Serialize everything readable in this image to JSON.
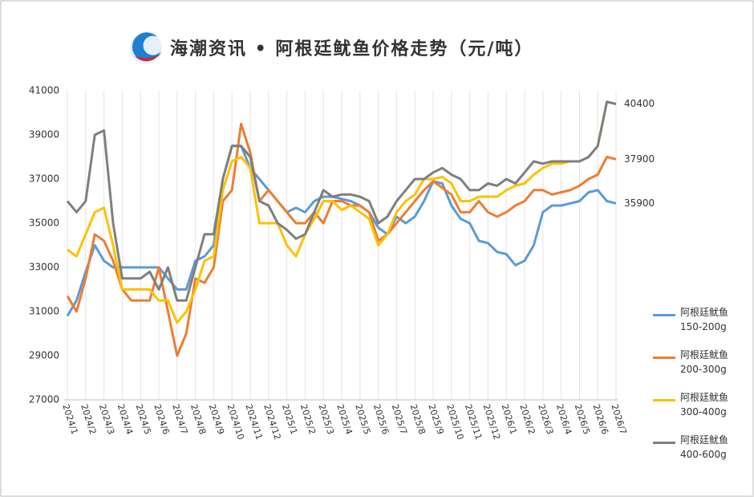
{
  "chart_data": {
    "type": "line",
    "title": "海潮资讯 • 阿根廷鱿鱼价格走势（元/吨）",
    "categories": [
      "2024/1",
      null,
      "2024/2",
      null,
      "2024/3",
      null,
      "2024/4",
      null,
      "2024/5",
      null,
      "2024/6",
      null,
      "2024/7",
      null,
      "2024/8",
      null,
      "2024/9",
      null,
      "2024/10",
      null,
      "2024/11",
      null,
      "2024/12",
      null,
      "2025/1",
      null,
      "2025/2",
      null,
      "2025/3",
      null,
      "2025/4",
      null,
      "2025/5",
      null,
      "2025/6",
      null,
      "2025/7",
      null,
      "2025/8",
      null,
      "2025/9",
      null,
      "2025/10",
      null,
      "2025/11",
      null,
      "2025/12",
      null,
      "2026/1",
      null,
      "2026/2",
      null,
      "2026/3",
      null,
      "2026/4",
      null,
      "2026/5",
      null,
      "2026/6",
      null,
      "2026/7"
    ],
    "series": [
      {
        "name": "阿根廷鱿鱼 150-200g",
        "color": "#5b9bd5",
        "values": [
          30800,
          31500,
          32800,
          34000,
          33300,
          33000,
          33000,
          33000,
          33000,
          33000,
          33000,
          32500,
          32000,
          32000,
          33300,
          33500,
          34000,
          37000,
          38500,
          38500,
          37500,
          37000,
          36500,
          36000,
          35500,
          35700,
          35500,
          36000,
          36200,
          36200,
          36100,
          36000,
          35800,
          35500,
          34800,
          34500,
          35300,
          35000,
          35300,
          36000,
          36900,
          36800,
          35800,
          35200,
          35000,
          34200,
          34100,
          33700,
          33600,
          33100,
          33300,
          34000,
          35500,
          35800,
          35800,
          35900,
          36000,
          36400,
          36500,
          36000,
          35900
        ]
      },
      {
        "name": "阿根廷鱿鱼 200-300g",
        "color": "#ed7d31",
        "values": [
          31700,
          31000,
          32500,
          34500,
          34200,
          33300,
          32000,
          31500,
          31500,
          31500,
          33000,
          31000,
          29000,
          30000,
          32500,
          32300,
          33000,
          36000,
          36500,
          39500,
          38200,
          36000,
          36500,
          36000,
          35500,
          35000,
          35000,
          35500,
          35000,
          36000,
          36000,
          35800,
          35800,
          35500,
          34200,
          34500,
          35000,
          35500,
          36000,
          36500,
          36900,
          36600,
          36300,
          35500,
          35500,
          36000,
          35500,
          35300,
          35500,
          35800,
          36000,
          36500,
          36500,
          36300,
          36400,
          36500,
          36700,
          37000,
          37200,
          38000,
          37900
        ]
      },
      {
        "name": "阿根廷鱿鱼 300-400g",
        "color": "#ffc000",
        "values": [
          33800,
          33500,
          34500,
          35500,
          35700,
          34000,
          32000,
          32000,
          32000,
          32000,
          31500,
          31500,
          30500,
          31000,
          32000,
          33300,
          33500,
          36500,
          37800,
          38000,
          37500,
          35000,
          35000,
          35000,
          34000,
          33500,
          34500,
          35200,
          36000,
          36000,
          35600,
          35800,
          35500,
          35200,
          34000,
          34500,
          35500,
          36000,
          36300,
          37000,
          37000,
          37100,
          36800,
          36000,
          36000,
          36200,
          36200,
          36200,
          36500,
          36700,
          36800,
          37200,
          37500,
          37700,
          37700,
          37800,
          37800,
          38000,
          38500,
          40500,
          40400
        ]
      },
      {
        "name": "阿根廷鱿鱼 400-600g",
        "color": "#7f7f7f",
        "values": [
          36000,
          35500,
          36000,
          39000,
          39200,
          35000,
          32500,
          32500,
          32500,
          32800,
          32000,
          33000,
          31500,
          31500,
          33000,
          34500,
          34500,
          37000,
          38500,
          38500,
          38000,
          36000,
          35800,
          35000,
          34700,
          34300,
          34500,
          35500,
          36500,
          36200,
          36300,
          36300,
          36200,
          36000,
          35000,
          35300,
          36000,
          36500,
          37000,
          37000,
          37300,
          37500,
          37200,
          37000,
          36500,
          36500,
          36800,
          36700,
          37000,
          36800,
          37300,
          37800,
          37700,
          37800,
          37800,
          37800,
          37800,
          38000,
          38500,
          40500,
          40400
        ]
      }
    ],
    "ylim": [
      27000,
      41000
    ],
    "yticks": [
      27000,
      29000,
      31000,
      33000,
      35000,
      37000,
      39000,
      41000
    ],
    "grid": true,
    "legend": "right"
  }
}
